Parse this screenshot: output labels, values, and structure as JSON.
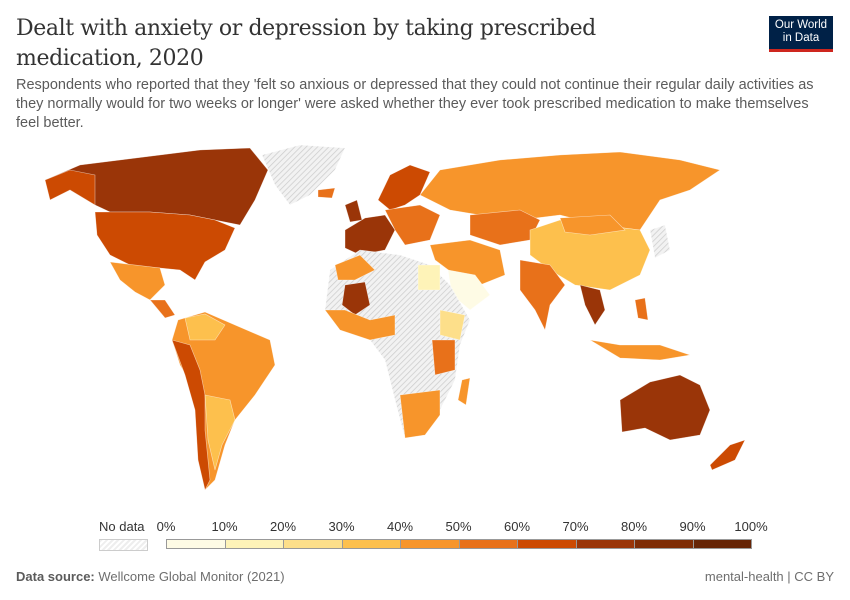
{
  "header": {
    "title": "Dealt with anxiety or depression by taking prescribed medication, 2020",
    "subtitle": "Respondents who reported that they 'felt so anxious or depressed that they could not continue their regular daily activities as they normally would for two weeks or longer' were asked whether they ever took prescribed medication to make themselves feel better.",
    "logo": "Our World in Data"
  },
  "legend": {
    "no_data": "No data",
    "ticks": [
      "0%",
      "10%",
      "20%",
      "30%",
      "40%",
      "50%",
      "60%",
      "70%",
      "80%",
      "90%",
      "100%"
    ],
    "colors": [
      "#fefbe5",
      "#fef3b8",
      "#fddf8a",
      "#fdc04d",
      "#f7952b",
      "#e8711a",
      "#cc4a02",
      "#9a3508",
      "#7e2c05",
      "#662506"
    ],
    "no_data_color": "#e8e8e8"
  },
  "footer": {
    "source_label": "Data source:",
    "source": "Wellcome Global Monitor (2021)",
    "license": "mental-health | CC BY"
  }
}
